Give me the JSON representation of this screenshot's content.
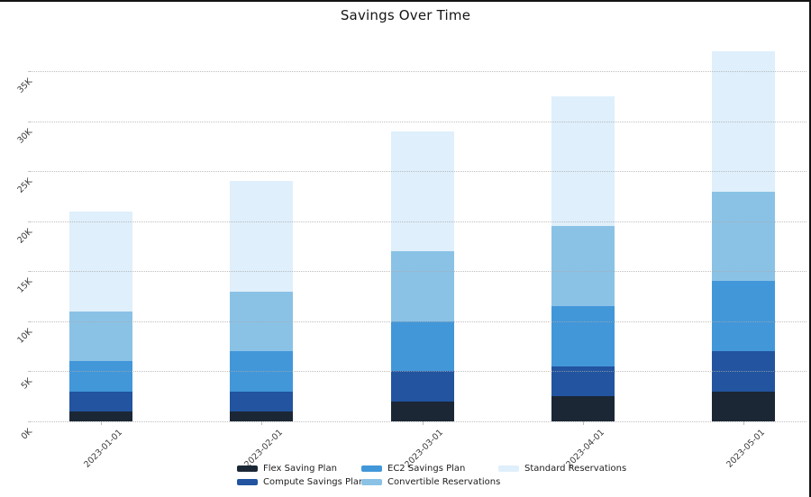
{
  "page": {
    "title": "Savings Over Time"
  },
  "chart_data": {
    "type": "bar",
    "stacked": true,
    "title": "Savings Over Time",
    "xlabel": "",
    "ylabel": "",
    "categories": [
      "2023-01-01",
      "2023-02-01",
      "2023-03-01",
      "2023-04-01",
      "2023-05-01"
    ],
    "series": [
      {
        "name": "Flex Saving Plan",
        "color": "#1b2735",
        "values": [
          1000,
          1000,
          2000,
          2500,
          3000
        ]
      },
      {
        "name": "Compute Savings Plan",
        "color": "#2254a0",
        "values": [
          2000,
          2000,
          3000,
          3000,
          4000
        ]
      },
      {
        "name": "EC2 Savings Plan",
        "color": "#4297d9",
        "values": [
          3000,
          4000,
          5000,
          6000,
          7000
        ]
      },
      {
        "name": "Convertible Reservations",
        "color": "#8ac2e6",
        "values": [
          5000,
          6000,
          7000,
          8000,
          9000
        ]
      },
      {
        "name": "Standard Reservations",
        "color": "#dfeffb",
        "values": [
          10000,
          11000,
          12000,
          13000,
          14000
        ]
      }
    ],
    "totals": [
      21000,
      24000,
      29000,
      32500,
      37000
    ],
    "y_ticks": [
      "0K",
      "5K",
      "10K",
      "15K",
      "20K",
      "25K",
      "30K",
      "35K"
    ],
    "y_tick_step": 5000,
    "y_max_tick": 35000,
    "ylim": [
      0,
      37500
    ],
    "grid": "horizontal-dotted",
    "legend_position": "bottom",
    "legend_columns": [
      [
        "Flex Saving Plan",
        "Compute Savings Plan"
      ],
      [
        "EC2 Savings Plan",
        "Convertible Reservations"
      ],
      [
        "Standard Reservations"
      ]
    ]
  }
}
